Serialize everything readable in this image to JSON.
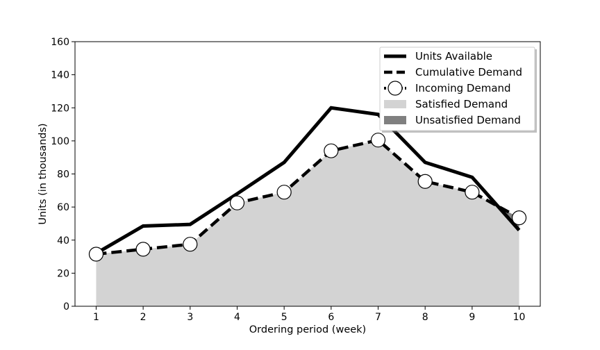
{
  "chart_data": {
    "type": "line",
    "xlabel": "Ordering period (week)",
    "ylabel": "Units (in thousands)",
    "x": [
      1,
      2,
      3,
      4,
      5,
      6,
      7,
      8,
      9,
      10
    ],
    "xlim": [
      0.55,
      10.45
    ],
    "ylim": [
      0,
      160
    ],
    "yticks": [
      0,
      20,
      40,
      60,
      80,
      100,
      120,
      140,
      160
    ],
    "series": [
      {
        "name": "Units Available",
        "style": "solid",
        "color": "#000000",
        "values": [
          32,
          48.5,
          49.5,
          68,
          87,
          120,
          116,
          87,
          78,
          46
        ]
      },
      {
        "name": "Cumulative Demand",
        "style": "dashed",
        "color": "#000000",
        "values": [
          31.5,
          34.5,
          37.5,
          62.5,
          69,
          94,
          100.5,
          75.5,
          69,
          53.5
        ]
      },
      {
        "name": "Incoming Demand",
        "style": "circle-markers",
        "color": "#000000",
        "values": [
          31.5,
          34.5,
          37.5,
          62.5,
          69,
          94,
          100.5,
          75.5,
          69,
          53.5
        ]
      }
    ],
    "areas": [
      {
        "name": "Satisfied Demand",
        "color": "#d3d3d3"
      },
      {
        "name": "Unsatisfied Demand",
        "color": "#808080"
      }
    ],
    "legend_position": "top-right",
    "legend_entries": [
      "Units Available",
      "Cumulative Demand",
      "Incoming Demand",
      "Satisfied Demand",
      "Unsatisfied Demand"
    ]
  }
}
